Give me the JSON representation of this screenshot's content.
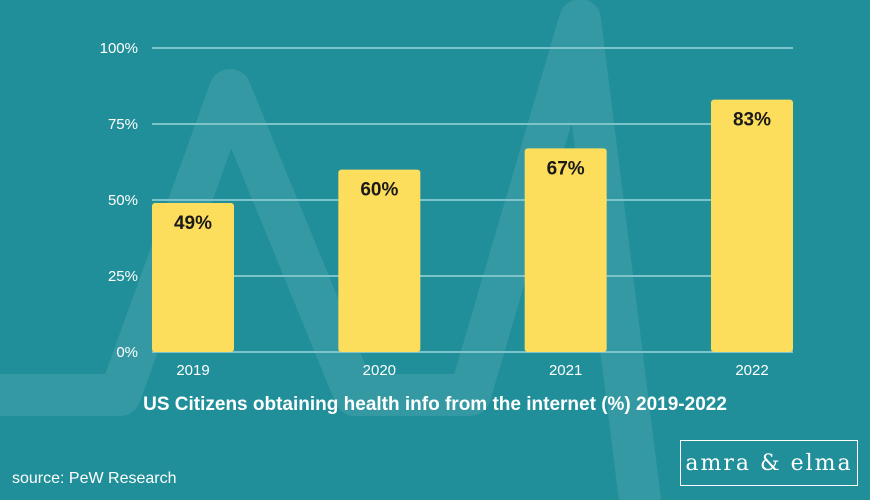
{
  "chart_data": {
    "type": "bar",
    "title": "US Citizens obtaining health info from the internet (%) 2019-2022",
    "categories": [
      "2019",
      "2020",
      "2021",
      "2022"
    ],
    "values": [
      49,
      60,
      67,
      83
    ],
    "data_labels": [
      "49%",
      "60%",
      "67%",
      "83%"
    ],
    "y_ticks": [
      0,
      25,
      50,
      75,
      100
    ],
    "y_tick_labels": [
      "0%",
      "25%",
      "50%",
      "75%",
      "100%"
    ],
    "ylim": [
      0,
      100
    ],
    "grid": true,
    "colors": {
      "background": "#208f99",
      "bar": "#fddd5c",
      "grid": "#7cc4ca",
      "text": "#ffffff",
      "data_label": "#1a1a1a"
    }
  },
  "source": "source: PeW Research",
  "brand": "amra & elma"
}
